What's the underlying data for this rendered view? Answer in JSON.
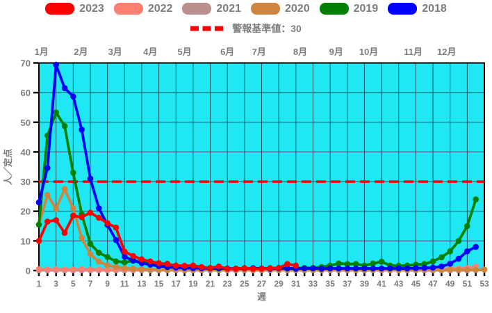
{
  "legend": {
    "warning_label": "警報基準値：30"
  },
  "chart_data": {
    "type": "line",
    "x_label": "週",
    "y_label": "人／定点",
    "xlim": [
      1,
      53
    ],
    "ylim": [
      0,
      70
    ],
    "plot_bg": "#1fe7f3",
    "grid_color": "#15555e",
    "frame_color": "#000000",
    "tick_text_color": "#7d7d7d",
    "grid": "on",
    "legend_position": "top",
    "y_ticks": [
      0,
      10,
      20,
      30,
      40,
      50,
      60,
      70
    ],
    "x_ticks": [
      1,
      3,
      5,
      7,
      9,
      11,
      13,
      15,
      17,
      19,
      21,
      23,
      25,
      27,
      29,
      31,
      33,
      35,
      37,
      39,
      41,
      43,
      45,
      47,
      49,
      51,
      53
    ],
    "months": [
      {
        "label": "1月",
        "week": 1.3
      },
      {
        "label": "2月",
        "week": 5.9
      },
      {
        "label": "3月",
        "week": 9.9
      },
      {
        "label": "4月",
        "week": 14.0
      },
      {
        "label": "5月",
        "week": 18.0
      },
      {
        "label": "6月",
        "week": 23.0
      },
      {
        "label": "7月",
        "week": 26.7
      },
      {
        "label": "8月",
        "week": 31.5
      },
      {
        "label": "9月",
        "week": 35.7
      },
      {
        "label": "10月",
        "week": 39.5
      },
      {
        "label": "11月",
        "week": 44.7
      },
      {
        "label": "12月",
        "week": 48.6
      }
    ],
    "warning": {
      "label": "警報基準値：30",
      "value": 30,
      "color": "#ff0000"
    },
    "draw_order": [
      "2021",
      "2022",
      "2020",
      "2019",
      "2018",
      "2023"
    ],
    "series": [
      {
        "name": "2023",
        "color": "#ff0000",
        "start_week": 1,
        "values": [
          10,
          16.5,
          17,
          12.7,
          18.5,
          18,
          19.5,
          17.8,
          16,
          14.5,
          6.4,
          4.9,
          3.8,
          3.1,
          2.5,
          2.2,
          1.7,
          1.6,
          1.7,
          1.2,
          0.9,
          1.4,
          0.6,
          0.6,
          0.8,
          0.6,
          0.6,
          0.8,
          0.9,
          2.2,
          1.7
        ]
      },
      {
        "name": "2022",
        "color": "#fa8072",
        "start_week": 1,
        "values": [
          0.5,
          0.4,
          0.5,
          0.4,
          0.4,
          0.5,
          0.4,
          0.4,
          0.3,
          0.4,
          0.4,
          0.3,
          0.4,
          0.4,
          0.4,
          0.3,
          0.4,
          0.4,
          0.3,
          0.4,
          0.4,
          0.4,
          0.3,
          0.4,
          0.4,
          0.4,
          0.4,
          0.3,
          0.4,
          0.4,
          0.4,
          0.4,
          0.3,
          0.4,
          0.4,
          0.4,
          0.4,
          0.4,
          0.4,
          0.4,
          0.4,
          0.4,
          0.4,
          0.4,
          0.4,
          0.4,
          0.5,
          0.5,
          0.6,
          0.7,
          0.9,
          1.4
        ]
      },
      {
        "name": "2021",
        "color": "#bc8f8f",
        "start_week": 1,
        "values": [
          0.1,
          0.1,
          0.1,
          0.1,
          0.1,
          0.1,
          0.1,
          0.1,
          0.1,
          0.1,
          0.1,
          0.1,
          0.1,
          0.1,
          0.1,
          0.1,
          0.1,
          0.1,
          0.1,
          0.1,
          0.1,
          0.1,
          0.1,
          0.1,
          0.1,
          0.1,
          0.1,
          0.1,
          0.1,
          0.1,
          0.1,
          0.1,
          0.1,
          0.1,
          0.1,
          0.1,
          0.1,
          0.1,
          0.1,
          0.1,
          0.1,
          0.1,
          0.1,
          0.1,
          0.1,
          0.1,
          0.1,
          0.1,
          0.1,
          0.1,
          0.1,
          0.2,
          0.4
        ]
      },
      {
        "name": "2020",
        "color": "#cd853f",
        "start_week": 1,
        "values": [
          15.5,
          25.5,
          20.8,
          27.5,
          21,
          11,
          5.5,
          3,
          1.8,
          1.2,
          0.8,
          0.6,
          0.5,
          0.4,
          0.3,
          0.3,
          0.3,
          0.2,
          0.2,
          0.2,
          0.2,
          0.2,
          0.2,
          0.2,
          0.2,
          0.2,
          0.2,
          0.2,
          0.2,
          0.2,
          0.2,
          0.2,
          0.2,
          0.2,
          0.2,
          0.2,
          0.2,
          0.2,
          0.2,
          0.2,
          0.2,
          0.2,
          0.2,
          0.2,
          0.2,
          0.2,
          0.2,
          0.2,
          0.2,
          0.2,
          0.2,
          0.2,
          0.3
        ]
      },
      {
        "name": "2019",
        "color": "#008000",
        "start_week": 1,
        "values": [
          15.5,
          45.5,
          53.3,
          48.7,
          33,
          19,
          9,
          6,
          4.6,
          3.1,
          2.8,
          3.3,
          3.1,
          2.4,
          2.0,
          2.3,
          1.4,
          1.0,
          0.9,
          0.8,
          0.8,
          0.7,
          0.7,
          0.7,
          0.8,
          0.7,
          0.7,
          0.8,
          0.8,
          0.7,
          0.8,
          0.9,
          0.9,
          1.2,
          1.7,
          2.4,
          2.2,
          2.2,
          1.7,
          2.4,
          3.0,
          1.7,
          1.6,
          1.7,
          2.0,
          2.2,
          3.1,
          4.5,
          6.5,
          10,
          15,
          24
        ]
      },
      {
        "name": "2018",
        "color": "#0000ff",
        "start_week": 1,
        "values": [
          23,
          34.6,
          69.4,
          61.5,
          58.7,
          47.5,
          31,
          21,
          15.4,
          10.3,
          4.7,
          3.4,
          2.5,
          2.0,
          1.5,
          1.2,
          1.0,
          0.9,
          0.8,
          0.8,
          0.7,
          0.7,
          0.7,
          0.6,
          0.7,
          0.8,
          0.7,
          0.6,
          0.7,
          0.7,
          0.6,
          0.7,
          0.7,
          0.6,
          0.7,
          0.7,
          0.7,
          0.7,
          0.7,
          0.7,
          0.7,
          0.7,
          0.7,
          0.7,
          0.8,
          0.9,
          1.0,
          1.4,
          2.3,
          4.0,
          6.5,
          8.0
        ]
      }
    ]
  }
}
